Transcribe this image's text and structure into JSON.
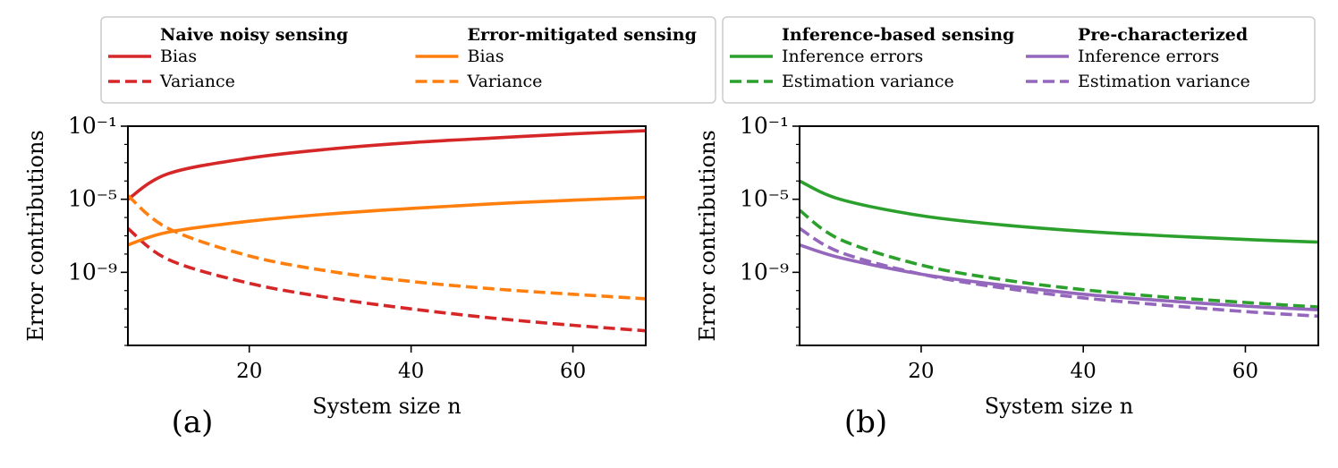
{
  "colors": {
    "red": "#d62728",
    "orange": "#ff7f0e",
    "green": "#2ca02c",
    "purple": "#9467bd",
    "axis": "#000000",
    "legend_border": "#cccccc"
  },
  "chart_data": [
    {
      "type": "line",
      "panel_label": "(a)",
      "xlabel": "System size n",
      "ylabel": "Error contributions",
      "xlim": [
        5,
        69
      ],
      "ylim_log10": [
        -13,
        -1
      ],
      "xticks": [
        20,
        40,
        60
      ],
      "yticks_log10": [
        -1,
        -5,
        -9
      ],
      "ytick_labels": [
        "10⁻¹",
        "10⁻⁵",
        "10⁻⁹"
      ],
      "legend_groups": [
        {
          "title": "Naive noisy sensing",
          "color": "#d62728"
        },
        {
          "title": "Error-mitigated sensing",
          "color": "#ff7f0e"
        }
      ],
      "x": [
        5,
        10,
        20,
        30,
        40,
        50,
        60,
        69
      ],
      "series": [
        {
          "name": "Bias",
          "group": 0,
          "dash": "solid",
          "color": "#d62728",
          "log10_values": [
            -5.0,
            -3.6,
            -2.75,
            -2.25,
            -1.9,
            -1.65,
            -1.42,
            -1.25
          ]
        },
        {
          "name": "Variance",
          "group": 0,
          "dash": "dashed",
          "color": "#d62728",
          "log10_values": [
            -6.6,
            -8.3,
            -9.6,
            -10.4,
            -11.0,
            -11.5,
            -11.9,
            -12.2
          ]
        },
        {
          "name": "Bias",
          "group": 1,
          "dash": "solid",
          "color": "#ff7f0e",
          "log10_values": [
            -7.5,
            -6.8,
            -6.2,
            -5.8,
            -5.5,
            -5.25,
            -5.05,
            -4.9
          ]
        },
        {
          "name": "Variance",
          "group": 1,
          "dash": "dashed",
          "color": "#ff7f0e",
          "log10_values": [
            -4.8,
            -6.6,
            -8.1,
            -8.95,
            -9.5,
            -9.9,
            -10.2,
            -10.45
          ]
        }
      ]
    },
    {
      "type": "line",
      "panel_label": "(b)",
      "xlabel": "System size n",
      "ylabel": "Error contributions",
      "xlim": [
        5,
        69
      ],
      "ylim_log10": [
        -13,
        -1
      ],
      "xticks": [
        20,
        40,
        60
      ],
      "yticks_log10": [
        -1,
        -5,
        -9
      ],
      "ytick_labels": [
        "10⁻¹",
        "10⁻⁵",
        "10⁻⁹"
      ],
      "legend_groups": [
        {
          "title": "Inference-based sensing",
          "color": "#2ca02c"
        },
        {
          "title": "Pre-characterized",
          "color": "#9467bd"
        }
      ],
      "x": [
        5,
        10,
        20,
        30,
        40,
        50,
        60,
        69
      ],
      "series": [
        {
          "name": "Inference errors",
          "group": 0,
          "dash": "solid",
          "color": "#2ca02c",
          "log10_values": [
            -4.0,
            -5.0,
            -5.9,
            -6.4,
            -6.75,
            -7.0,
            -7.2,
            -7.35
          ]
        },
        {
          "name": "Estimation variance",
          "group": 0,
          "dash": "dashed",
          "color": "#2ca02c",
          "log10_values": [
            -5.6,
            -7.2,
            -8.6,
            -9.4,
            -9.95,
            -10.35,
            -10.65,
            -10.9
          ]
        },
        {
          "name": "Inference errors",
          "group": 1,
          "dash": "solid",
          "color": "#9467bd",
          "log10_values": [
            -7.5,
            -8.2,
            -9.1,
            -9.7,
            -10.2,
            -10.55,
            -10.85,
            -11.05
          ]
        },
        {
          "name": "Estimation variance",
          "group": 1,
          "dash": "dashed",
          "color": "#9467bd",
          "log10_values": [
            -6.6,
            -7.9,
            -9.1,
            -9.85,
            -10.4,
            -10.8,
            -11.15,
            -11.4
          ]
        }
      ]
    }
  ]
}
